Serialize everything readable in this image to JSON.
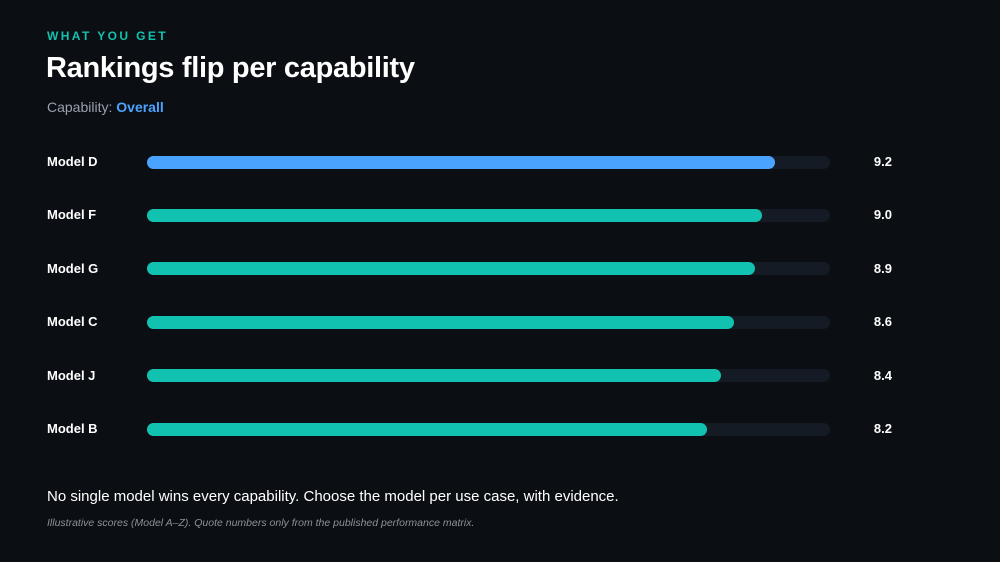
{
  "header": {
    "eyebrow": "WHAT YOU GET",
    "title": "Rankings flip per capability"
  },
  "capability": {
    "label": "Capability:",
    "value": "Overall"
  },
  "chart_data": {
    "type": "bar",
    "orientation": "horizontal",
    "categories": [
      "Model D",
      "Model F",
      "Model G",
      "Model C",
      "Model J",
      "Model B"
    ],
    "values": [
      9.2,
      9.0,
      8.9,
      8.6,
      8.4,
      8.2
    ],
    "value_labels": [
      "9.2",
      "9.0",
      "8.9",
      "8.6",
      "8.4",
      "8.2"
    ],
    "xlim": [
      0,
      10
    ],
    "grid": false,
    "title": "",
    "xlabel": "",
    "ylabel": "",
    "colors": {
      "highlight": "#4aa3ff",
      "default": "#12c2b0",
      "track": "#151b24"
    }
  },
  "takeaway": "No single model wins every capability. Choose the model per use case, with evidence.",
  "footnote": "Illustrative scores (Model A–Z). Quote numbers only from the published performance matrix."
}
